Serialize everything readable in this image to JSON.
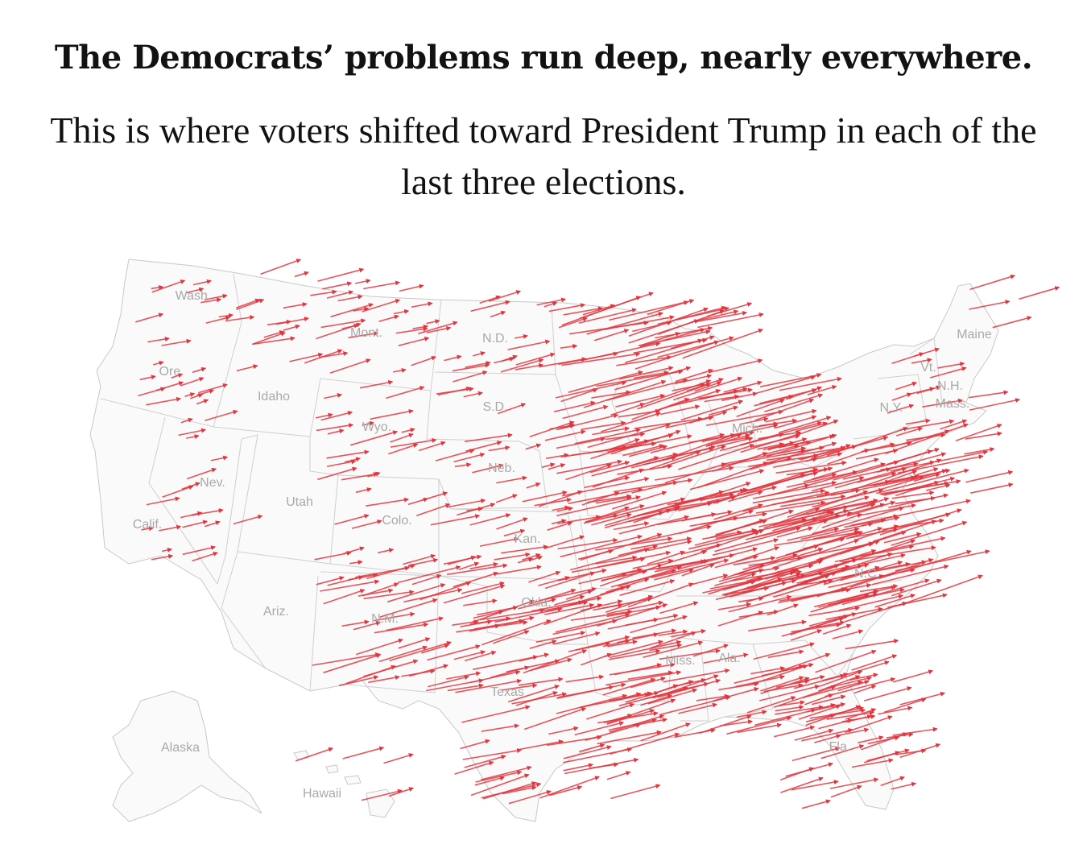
{
  "headline": "The Democrats’ problems run deep, nearly everywhere.",
  "subhead": "This is where voters shifted toward President Trump in each of the last three elections.",
  "map": {
    "land_color": "#fafafa",
    "border_color": "#c8c8c8",
    "arrow_color": "#e2363f",
    "label_color": "#a9a9a9",
    "state_labels": [
      {
        "id": "wash",
        "text": "Wash."
      },
      {
        "id": "ore",
        "text": "Ore."
      },
      {
        "id": "calif",
        "text": "Calif."
      },
      {
        "id": "nev",
        "text": "Nev."
      },
      {
        "id": "idaho",
        "text": "Idaho"
      },
      {
        "id": "mont",
        "text": "Mont."
      },
      {
        "id": "wyo",
        "text": "Wyo."
      },
      {
        "id": "utah",
        "text": "Utah"
      },
      {
        "id": "colo",
        "text": "Colo."
      },
      {
        "id": "ariz",
        "text": "Ariz."
      },
      {
        "id": "nm",
        "text": "N.M."
      },
      {
        "id": "nd",
        "text": "N.D."
      },
      {
        "id": "sd",
        "text": "S.D."
      },
      {
        "id": "neb",
        "text": "Neb."
      },
      {
        "id": "kan",
        "text": "Kan."
      },
      {
        "id": "okla",
        "text": "Okla."
      },
      {
        "id": "texas",
        "text": "Texas"
      },
      {
        "id": "mich",
        "text": "Mich."
      },
      {
        "id": "miss",
        "text": "Miss."
      },
      {
        "id": "ala",
        "text": "Ala."
      },
      {
        "id": "fla",
        "text": "Fla."
      },
      {
        "id": "nc",
        "text": "N.C."
      },
      {
        "id": "ny",
        "text": "N.Y."
      },
      {
        "id": "maine",
        "text": "Maine"
      },
      {
        "id": "vt",
        "text": "Vt."
      },
      {
        "id": "nh",
        "text": "N.H."
      },
      {
        "id": "mass",
        "text": "Mass."
      },
      {
        "id": "alaska",
        "text": "Alaska"
      },
      {
        "id": "hawaii",
        "text": "Hawaii"
      }
    ]
  }
}
